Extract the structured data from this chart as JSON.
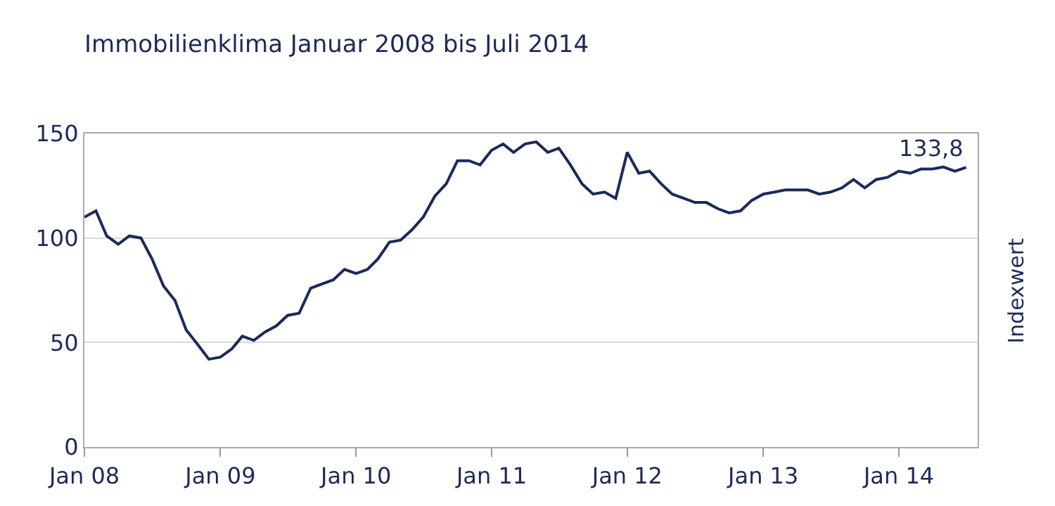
{
  "chart_data": {
    "type": "line",
    "title": "Immobilienklima Januar 2008 bis Juli 2014",
    "ylabel": "Indexwert",
    "x": [
      "2008-01",
      "2008-02",
      "2008-03",
      "2008-04",
      "2008-05",
      "2008-06",
      "2008-07",
      "2008-08",
      "2008-09",
      "2008-10",
      "2008-11",
      "2008-12",
      "2009-01",
      "2009-02",
      "2009-03",
      "2009-04",
      "2009-05",
      "2009-06",
      "2009-07",
      "2009-08",
      "2009-09",
      "2009-10",
      "2009-11",
      "2009-12",
      "2010-01",
      "2010-02",
      "2010-03",
      "2010-04",
      "2010-05",
      "2010-06",
      "2010-07",
      "2010-08",
      "2010-09",
      "2010-10",
      "2010-11",
      "2010-12",
      "2011-01",
      "2011-02",
      "2011-03",
      "2011-04",
      "2011-05",
      "2011-06",
      "2011-07",
      "2011-08",
      "2011-09",
      "2011-10",
      "2011-11",
      "2011-12",
      "2012-01",
      "2012-02",
      "2012-03",
      "2012-04",
      "2012-05",
      "2012-06",
      "2012-07",
      "2012-08",
      "2012-09",
      "2012-10",
      "2012-11",
      "2012-12",
      "2013-01",
      "2013-02",
      "2013-03",
      "2013-04",
      "2013-05",
      "2013-06",
      "2013-07",
      "2013-08",
      "2013-09",
      "2013-10",
      "2013-11",
      "2013-12",
      "2014-01",
      "2014-02",
      "2014-03",
      "2014-04",
      "2014-05",
      "2014-06",
      "2014-07"
    ],
    "series": [
      {
        "color": "#1b2a5a",
        "values": [
          110,
          113,
          101,
          97,
          101,
          100,
          90,
          77,
          70,
          56,
          49,
          42,
          43,
          47,
          53,
          51,
          55,
          58,
          63,
          64,
          76,
          78,
          80,
          85,
          83,
          85,
          90,
          98,
          99,
          104,
          110,
          120,
          126,
          137,
          137,
          135,
          142,
          145,
          141,
          145,
          146,
          141,
          143,
          135,
          126,
          121,
          122,
          119,
          141,
          131,
          132,
          126,
          121,
          119,
          117,
          117,
          114,
          112,
          113,
          118,
          121,
          122,
          123,
          123,
          123,
          121,
          122,
          124,
          128,
          124,
          128,
          129,
          132,
          131,
          133,
          133,
          134,
          132,
          133.8
        ]
      }
    ],
    "annotations": [
      {
        "text": "133,8",
        "x": "2014-07",
        "y": 133.8
      }
    ],
    "xlim": [
      "2008-01",
      "2014-08"
    ],
    "xticks": [
      {
        "value": "2008-01",
        "label": "Jan 08"
      },
      {
        "value": "2009-01",
        "label": "Jan 09"
      },
      {
        "value": "2010-01",
        "label": "Jan 10"
      },
      {
        "value": "2011-01",
        "label": "Jan 11"
      },
      {
        "value": "2012-01",
        "label": "Jan 12"
      },
      {
        "value": "2013-01",
        "label": "Jan 13"
      },
      {
        "value": "2014-01",
        "label": "Jan 14"
      }
    ],
    "ylim": [
      0,
      150
    ],
    "yticks": [
      0,
      50,
      100,
      150
    ],
    "grid": "y",
    "marker": "none",
    "line_style": "solid"
  }
}
